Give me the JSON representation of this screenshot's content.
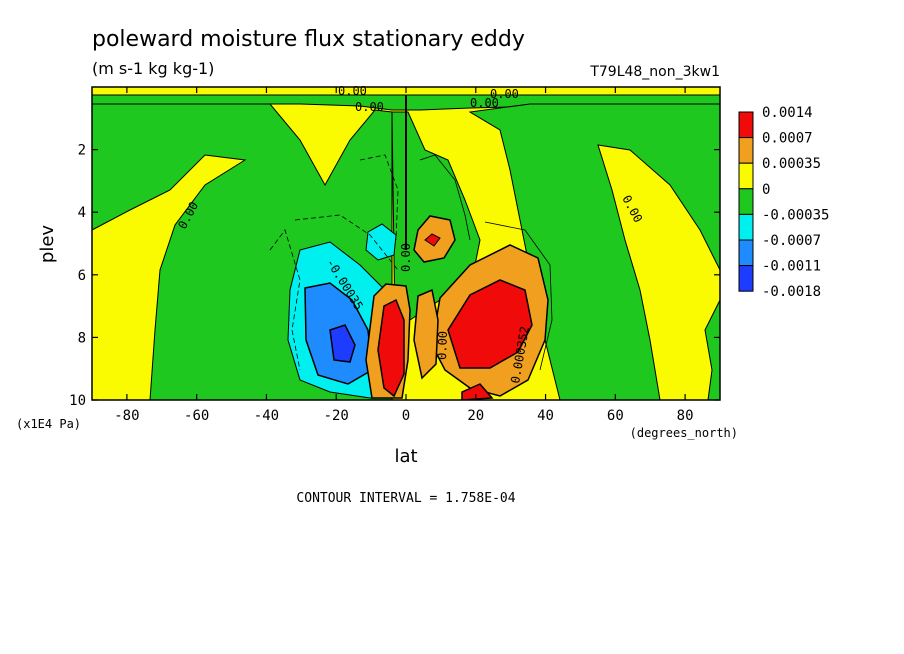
{
  "title": "poleward moisture flux stationary eddy",
  "units": "(m s-1 kg kg-1)",
  "run_label": "T79L48_non_3kw1",
  "footer": "CONTOUR INTERVAL = 1.758E-04",
  "chart_data": {
    "type": "heatmap",
    "title": "poleward moisture flux stationary eddy",
    "subtitle": "(m s-1 kg kg-1)",
    "xlabel": "lat",
    "x_units": "(degrees_north)",
    "ylabel": "plev",
    "y_units": "(x1E4 Pa)",
    "xlim": [
      -90,
      90
    ],
    "ylim": [
      10,
      0
    ],
    "x_ticks": [
      -80,
      -60,
      -40,
      -20,
      0,
      20,
      40,
      60,
      80
    ],
    "x_tick_labels": [
      "-80",
      "-60",
      "-40",
      "-20",
      "0",
      "20",
      "40",
      "60",
      "80"
    ],
    "y_ticks": [
      2,
      4,
      6,
      8,
      10
    ],
    "y_tick_labels": [
      "2",
      "4",
      "6",
      "8",
      "10"
    ],
    "contour_interval": "1.758E-04",
    "legend": {
      "placement": "right",
      "levels": [
        "0.0014",
        "0.0007",
        "0.00035",
        "0",
        "-0.00035",
        "-0.0007",
        "-0.0011",
        "-0.0018"
      ],
      "colors": [
        "#f00a0a",
        "#f0a01e",
        "#fafa00",
        "#1ec81e",
        "#00f0f0",
        "#1e8cff",
        "#1e3cff"
      ]
    },
    "contour_labels": [
      "0.00",
      "0.00",
      "0.00",
      "0.00",
      "0.00",
      "0.00",
      "-0.00035",
      "0.00",
      "0.000352",
      "0.00"
    ],
    "features": [
      {
        "lat": 22,
        "plev": 7.6,
        "value": 0.0014,
        "sign": "positive",
        "label": "max positive, subtropical north"
      },
      {
        "lat": -4,
        "plev": 8.2,
        "value": 0.0014,
        "sign": "positive"
      },
      {
        "lat": 7,
        "plev": 5.0,
        "value": 0.0014,
        "sign": "positive"
      },
      {
        "lat": -19,
        "plev": 8.0,
        "value": -0.0018,
        "sign": "negative",
        "label": "max negative, subtropical south"
      },
      {
        "lat": -7,
        "plev": 5.0,
        "value": -0.0007,
        "sign": "negative"
      }
    ]
  }
}
